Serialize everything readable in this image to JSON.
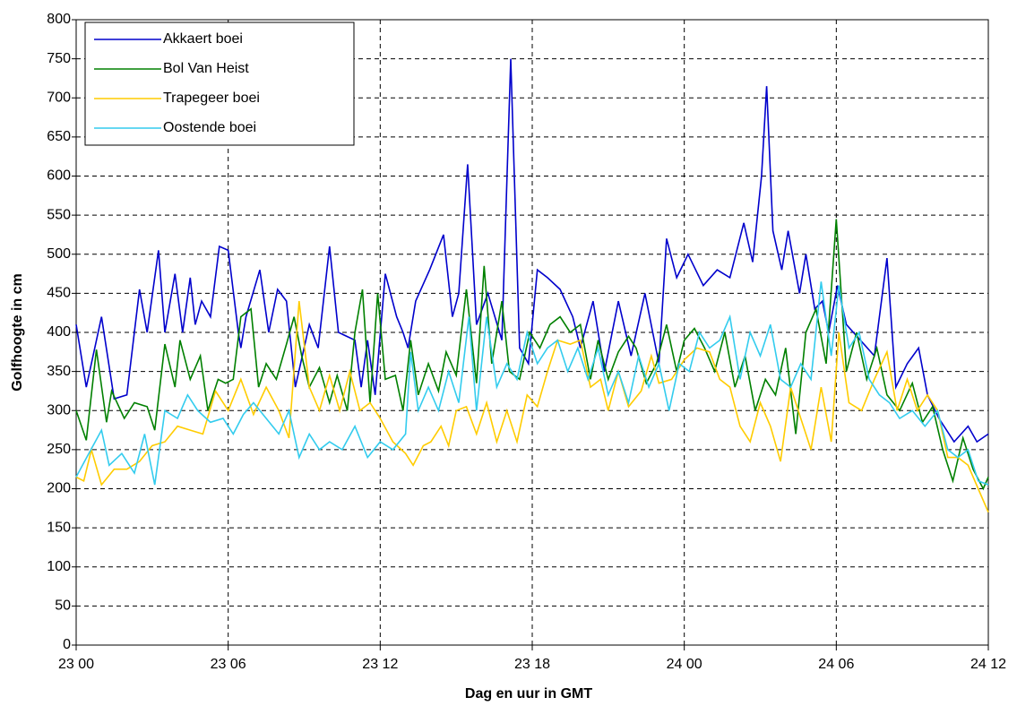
{
  "chart_data": {
    "type": "line",
    "xlabel": "Dag en uur in GMT",
    "ylabel": "Golfhoogte in cm",
    "xlim": [
      0,
      36
    ],
    "xticks": [
      {
        "value": 0,
        "label": "23 00"
      },
      {
        "value": 6,
        "label": "23 06"
      },
      {
        "value": 12,
        "label": "23 12"
      },
      {
        "value": 18,
        "label": "23 18"
      },
      {
        "value": 24,
        "label": "24 00"
      },
      {
        "value": 30,
        "label": "24 06"
      },
      {
        "value": 36,
        "label": "24 12"
      }
    ],
    "ylim": [
      0,
      800
    ],
    "yticks": [
      0,
      50,
      100,
      150,
      200,
      250,
      300,
      350,
      400,
      450,
      500,
      550,
      600,
      650,
      700,
      750,
      800
    ],
    "grid": true,
    "legend": "upper left",
    "series": [
      {
        "name": "Akkaert boei",
        "color": "#0000cc",
        "x": [
          0,
          0.4,
          1.0,
          1.5,
          2.0,
          2.5,
          2.8,
          3.25,
          3.5,
          3.9,
          4.2,
          4.5,
          4.7,
          4.95,
          5.3,
          5.65,
          6.0,
          6.4,
          6.5,
          6.7,
          7.25,
          7.6,
          7.95,
          8.3,
          8.65,
          9.2,
          9.55,
          10.0,
          10.35,
          11.0,
          11.25,
          11.5,
          11.8,
          12.2,
          12.65,
          12.9,
          13.1,
          13.4,
          13.95,
          14.5,
          14.85,
          15.1,
          15.45,
          15.8,
          16.25,
          16.8,
          17.15,
          17.5,
          17.85,
          18.2,
          18.6,
          19.1,
          19.6,
          19.9,
          20.4,
          20.85,
          21.4,
          21.9,
          22.45,
          23.0,
          23.3,
          23.7,
          24.15,
          24.75,
          25.3,
          25.8,
          26.35,
          26.7,
          27.05,
          27.25,
          27.5,
          27.85,
          28.1,
          28.55,
          28.8,
          29.15,
          29.45,
          29.7,
          30.05,
          30.4,
          30.95,
          31.5,
          32.0,
          32.35,
          32.8,
          33.25,
          33.6,
          34.05,
          34.65,
          35.2,
          35.55,
          36
        ],
        "values": [
          410,
          330,
          420,
          315,
          320,
          455,
          400,
          505,
          400,
          475,
          400,
          470,
          410,
          440,
          420,
          510,
          505,
          400,
          380,
          420,
          480,
          400,
          455,
          440,
          330,
          410,
          380,
          510,
          400,
          390,
          330,
          390,
          320,
          475,
          420,
          400,
          380,
          440,
          480,
          525,
          420,
          450,
          615,
          410,
          450,
          390,
          750,
          380,
          360,
          480,
          470,
          455,
          420,
          380,
          440,
          350,
          440,
          370,
          450,
          360,
          520,
          470,
          500,
          460,
          480,
          470,
          540,
          490,
          600,
          715,
          530,
          480,
          530,
          450,
          500,
          430,
          440,
          400,
          460,
          410,
          390,
          370,
          495,
          330,
          360,
          380,
          320,
          290,
          260,
          280,
          260,
          270
        ]
      },
      {
        "name": "Bol Van Heist",
        "color": "#008000",
        "x": [
          0,
          0.4,
          0.8,
          1.2,
          1.4,
          1.9,
          2.3,
          2.8,
          3.1,
          3.5,
          3.9,
          4.1,
          4.5,
          4.9,
          5.2,
          5.6,
          5.9,
          6.2,
          6.5,
          6.9,
          7.2,
          7.5,
          7.9,
          8.3,
          8.6,
          8.9,
          9.2,
          9.6,
          10.0,
          10.3,
          10.7,
          11.0,
          11.3,
          11.6,
          11.9,
          12.2,
          12.6,
          12.9,
          13.2,
          13.5,
          13.9,
          14.3,
          14.6,
          15.0,
          15.4,
          15.8,
          16.1,
          16.4,
          16.8,
          17.1,
          17.5,
          17.9,
          18.3,
          18.7,
          19.1,
          19.5,
          19.9,
          20.3,
          20.6,
          21.0,
          21.4,
          21.8,
          22.1,
          22.5,
          22.9,
          23.3,
          23.7,
          24.0,
          24.4,
          24.8,
          25.2,
          25.6,
          26.0,
          26.4,
          26.8,
          27.2,
          27.6,
          28.0,
          28.4,
          28.8,
          29.2,
          29.6,
          30.0,
          30.4,
          30.8,
          31.2,
          31.6,
          32.0,
          32.5,
          33.0,
          33.4,
          33.8,
          34.2,
          34.6,
          35.0,
          35.4,
          35.8,
          36
        ],
        "values": [
          300,
          262,
          378,
          285,
          325,
          290,
          310,
          305,
          275,
          385,
          330,
          390,
          340,
          370,
          300,
          340,
          335,
          340,
          420,
          430,
          330,
          360,
          340,
          385,
          420,
          370,
          330,
          355,
          310,
          345,
          300,
          400,
          455,
          310,
          450,
          340,
          345,
          300,
          390,
          320,
          360,
          325,
          375,
          345,
          455,
          335,
          485,
          360,
          440,
          350,
          340,
          400,
          380,
          410,
          420,
          400,
          410,
          340,
          390,
          340,
          375,
          395,
          380,
          335,
          360,
          410,
          350,
          390,
          405,
          380,
          350,
          400,
          330,
          370,
          300,
          340,
          320,
          380,
          270,
          400,
          430,
          360,
          545,
          350,
          400,
          340,
          380,
          320,
          300,
          335,
          285,
          305,
          250,
          210,
          265,
          225,
          200,
          215
        ]
      },
      {
        "name": "Trapegeer boei",
        "color": "#ffcc00",
        "x": [
          0,
          0.3,
          0.6,
          1.0,
          1.5,
          2,
          2.5,
          3,
          3.5,
          4,
          4.5,
          5,
          5.5,
          6,
          6.5,
          7,
          7.5,
          8,
          8.4,
          8.8,
          9.2,
          9.6,
          10.0,
          10.4,
          10.8,
          11.2,
          11.6,
          12,
          12.5,
          13.0,
          13.3,
          13.7,
          14.0,
          14.4,
          14.7,
          15.0,
          15.4,
          15.8,
          16.2,
          16.6,
          17,
          17.4,
          17.8,
          18.2,
          18.6,
          19.0,
          19.5,
          19.9,
          20.3,
          20.7,
          21.0,
          21.4,
          21.8,
          22.3,
          22.7,
          23,
          23.5,
          24,
          24.5,
          25,
          25.4,
          25.8,
          26.2,
          26.6,
          27,
          27.4,
          27.8,
          28.2,
          28.6,
          29,
          29.4,
          29.8,
          30.1,
          30.5,
          31,
          31.5,
          32,
          32.4,
          32.8,
          33.2,
          33.6,
          34,
          34.4,
          34.8,
          35.2,
          35.6,
          36
        ],
        "values": [
          215,
          210,
          250,
          205,
          225,
          225,
          235,
          255,
          260,
          280,
          275,
          270,
          325,
          300,
          340,
          295,
          330,
          300,
          265,
          440,
          330,
          300,
          345,
          300,
          350,
          300,
          310,
          290,
          260,
          245,
          230,
          255,
          260,
          280,
          255,
          300,
          305,
          270,
          310,
          260,
          300,
          260,
          320,
          305,
          350,
          390,
          385,
          390,
          330,
          340,
          300,
          350,
          305,
          325,
          370,
          335,
          340,
          365,
          380,
          375,
          340,
          330,
          280,
          260,
          310,
          280,
          235,
          330,
          290,
          250,
          330,
          260,
          400,
          310,
          300,
          340,
          375,
          300,
          340,
          300,
          320,
          300,
          240,
          240,
          230,
          200,
          170
        ]
      },
      {
        "name": "Oostende boei",
        "color": "#33ccee",
        "x": [
          0,
          0.5,
          1.0,
          1.3,
          1.8,
          2.3,
          2.7,
          3.1,
          3.5,
          4,
          4.4,
          4.8,
          5.3,
          5.8,
          6.2,
          6.6,
          7.0,
          7.5,
          8.0,
          8.4,
          8.8,
          9.2,
          9.6,
          10,
          10.5,
          11,
          11.5,
          12,
          12.5,
          13,
          13.2,
          13.5,
          13.9,
          14.3,
          14.7,
          15.1,
          15.5,
          15.8,
          16.2,
          16.6,
          17,
          17.4,
          17.8,
          18.2,
          18.6,
          19,
          19.4,
          19.8,
          20.2,
          20.6,
          21,
          21.4,
          21.8,
          22.2,
          22.6,
          23,
          23.4,
          23.8,
          24.2,
          24.6,
          25.0,
          25.4,
          25.8,
          26.2,
          26.6,
          27.0,
          27.4,
          27.8,
          28.2,
          28.6,
          29,
          29.4,
          29.8,
          30.1,
          30.5,
          30.9,
          31.3,
          31.7,
          32.1,
          32.5,
          33,
          33.5,
          34,
          34.4,
          34.8,
          35.2,
          35.6,
          36
        ],
        "values": [
          215,
          245,
          275,
          230,
          245,
          220,
          270,
          205,
          300,
          290,
          320,
          300,
          285,
          290,
          270,
          295,
          310,
          290,
          270,
          300,
          240,
          270,
          250,
          260,
          250,
          280,
          240,
          260,
          250,
          270,
          375,
          300,
          330,
          300,
          350,
          310,
          420,
          300,
          420,
          330,
          360,
          340,
          400,
          360,
          380,
          390,
          350,
          380,
          340,
          380,
          320,
          350,
          310,
          370,
          330,
          360,
          300,
          360,
          350,
          400,
          380,
          390,
          420,
          340,
          400,
          370,
          410,
          340,
          330,
          360,
          340,
          465,
          370,
          460,
          380,
          400,
          340,
          320,
          310,
          290,
          300,
          280,
          300,
          250,
          240,
          250,
          210,
          205
        ]
      }
    ]
  }
}
